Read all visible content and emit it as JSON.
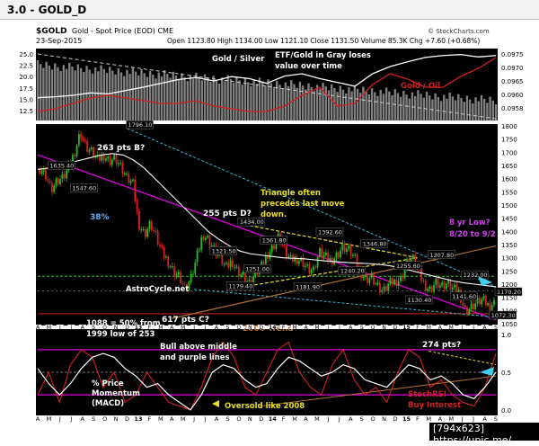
{
  "window_title": "3.0 - GOLD_D",
  "header": {
    "symbol": "$GOLD",
    "symbol_desc": "Gold - Spot Price (EOD) CME",
    "date": "23-Sep-2015",
    "ohlc": "Open 1123.80  High 1134.00  Low 1121.10  Close 1131.50  Volume 85.3K  Chg +7.60 (+0.68%)",
    "credit": "© StockCharts.com"
  },
  "colors": {
    "background": "#000000",
    "candle_up": "#22c022",
    "candle_down": "#e02020",
    "moving_average": "#ffffff",
    "magenta_line": "#e000e0",
    "cyan_line": "#30b8d0",
    "yellow_line": "#e8e020",
    "green_line": "#30c030",
    "red_line": "#d02020",
    "trend_line": "#b07030",
    "ratio_fill": "#808080"
  },
  "chart_data": [
    {
      "type": "line",
      "panel": "ratio",
      "series": [
        {
          "name": "Gold / Silver",
          "values": [
            16.0,
            16.2,
            16.5,
            17.0,
            16.8,
            17.5,
            18.2,
            19.0,
            19.8,
            20.2,
            19.5,
            20.4,
            20.0,
            19.0,
            20.5,
            21.0,
            20.0,
            19.2,
            18.4,
            21.0,
            22.5,
            23.5,
            24.4,
            24.8,
            25.0,
            24.5,
            24.8
          ]
        },
        {
          "name": "Gold / Oil",
          "values": [
            0.0956,
            0.0957,
            0.0959,
            0.0961,
            0.0962,
            0.0961,
            0.096,
            0.0959,
            0.0959,
            0.096,
            0.0958,
            0.0957,
            0.0956,
            0.0956,
            0.0958,
            0.0962,
            0.0965,
            0.0958,
            0.0959,
            0.0966,
            0.097,
            0.0968,
            0.0965,
            0.0965,
            0.0969,
            0.0972,
            0.0976
          ]
        }
      ],
      "y_left_ticks": [
        "25.0",
        "22.5",
        "20.0",
        "17.5",
        "15.0",
        "12.5"
      ],
      "y_right_ticks": [
        "0.0975",
        "0.0970",
        "0.0965",
        "0.0960",
        "0.0958"
      ],
      "annotations": [
        "Gold / Silver",
        "ETF/Gold in Gray loses",
        "value over time",
        "Gold / Oil"
      ]
    },
    {
      "type": "candlestick",
      "panel": "price",
      "x_months": [
        "A",
        "M",
        "J",
        "J",
        "A",
        "S",
        "O",
        "N",
        "D",
        "13",
        "F",
        "M",
        "A",
        "M",
        "J",
        "J",
        "A",
        "S",
        "O",
        "N",
        "D",
        "14",
        "F",
        "M",
        "A",
        "M",
        "J",
        "J",
        "A",
        "S",
        "O",
        "N",
        "D",
        "15",
        "F",
        "M",
        "A",
        "M",
        "J",
        "J",
        "A",
        "S"
      ],
      "ylim": [
        1050,
        1800
      ],
      "y_ticks": [
        1800,
        1750,
        1700,
        1650,
        1600,
        1550,
        1500,
        1450,
        1400,
        1350,
        1300,
        1250,
        1200,
        1150,
        1100,
        1050
      ],
      "close_path": [
        1640,
        1620,
        1560,
        1590,
        1600,
        1640,
        1700,
        1775,
        1720,
        1700,
        1670,
        1690,
        1670,
        1680,
        1640,
        1600,
        1580,
        1430,
        1390,
        1430,
        1380,
        1320,
        1290,
        1250,
        1230,
        1180,
        1220,
        1300,
        1390,
        1370,
        1330,
        1300,
        1260,
        1290,
        1250,
        1230,
        1200,
        1240,
        1260,
        1310,
        1340,
        1380,
        1330,
        1290,
        1300,
        1290,
        1260,
        1250,
        1320,
        1300,
        1290,
        1310,
        1340,
        1330,
        1300,
        1250,
        1220,
        1230,
        1190,
        1170,
        1200,
        1210,
        1220,
        1280,
        1300,
        1250,
        1200,
        1180,
        1210,
        1190,
        1200,
        1180,
        1170,
        1100,
        1110,
        1130,
        1140,
        1120,
        1130
      ],
      "ma_values": [
        1635,
        1640,
        1650,
        1660,
        1670,
        1680,
        1690,
        1695,
        1690,
        1670,
        1640,
        1600,
        1560,
        1520,
        1480,
        1440,
        1400,
        1370,
        1345,
        1325,
        1315,
        1310,
        1305,
        1300,
        1298,
        1296,
        1292,
        1288,
        1285,
        1282,
        1280,
        1278,
        1275,
        1270,
        1262,
        1252,
        1242,
        1232,
        1222,
        1212,
        1205,
        1200,
        1195,
        1190
      ],
      "labels": [
        {
          "text": "1796.10",
          "x": 8,
          "y": 1796
        },
        {
          "text": "1635.40",
          "x": 1,
          "y": 1642
        },
        {
          "text": "1547.60",
          "x": 3,
          "y": 1556
        },
        {
          "text": "1434.00",
          "x": 18,
          "y": 1428
        },
        {
          "text": "1361.80",
          "x": 20,
          "y": 1358
        },
        {
          "text": "1321.50",
          "x": 15.5,
          "y": 1318
        },
        {
          "text": "1251.00",
          "x": 18.5,
          "y": 1250
        },
        {
          "text": "1179.40",
          "x": 17,
          "y": 1185
        },
        {
          "text": "1181.90",
          "x": 23,
          "y": 1182
        },
        {
          "text": "1392.60",
          "x": 25,
          "y": 1390
        },
        {
          "text": "1240.20",
          "x": 27,
          "y": 1242
        },
        {
          "text": "1346.80",
          "x": 29,
          "y": 1345
        },
        {
          "text": "1255.60",
          "x": 32,
          "y": 1262
        },
        {
          "text": "1130.40",
          "x": 33,
          "y": 1132
        },
        {
          "text": "1307.80",
          "x": 35,
          "y": 1303
        },
        {
          "text": "1232.00",
          "x": 38,
          "y": 1227
        },
        {
          "text": "1141.60",
          "x": 37,
          "y": 1146
        },
        {
          "text": "1072.30",
          "x": 40.5,
          "y": 1074
        },
        {
          "text": "1170.20",
          "x": 41,
          "y": 1163
        }
      ],
      "annotations": {
        "pts_b": "263 pts B?",
        "triangle": "Triangle often\nprecedes last move\ndown.",
        "pct38": "38%",
        "pts_d": "255 pts D?",
        "low_q": "8 yr Low?\n8/20 to 9/2",
        "astro": "AstroCycle.net",
        "pts_c": "617 pts C?",
        "trend2000": "2000 Trend",
        "note1088": "1088 = 50% from\n1999  low of 253",
        "pts274": "274 pts?"
      }
    },
    {
      "type": "line",
      "panel": "momentum",
      "series": [
        {
          "name": "% Price Momentum (MACD)",
          "values": [
            0.55,
            0.35,
            0.2,
            0.35,
            0.55,
            0.7,
            0.75,
            0.7,
            0.55,
            0.45,
            0.3,
            0.35,
            0.2,
            0.1,
            0.0,
            0.2,
            0.5,
            0.6,
            0.55,
            0.4,
            0.3,
            0.35,
            0.55,
            0.7,
            0.65,
            0.55,
            0.45,
            0.5,
            0.6,
            0.55,
            0.4,
            0.35,
            0.3,
            0.45,
            0.6,
            0.55,
            0.4,
            0.45,
            0.35,
            0.2,
            0.15,
            0.3,
            0.5
          ]
        },
        {
          "name": "StochRSI",
          "values": [
            0.2,
            0.5,
            0.1,
            0.6,
            0.8,
            0.7,
            0.3,
            0.5,
            0.1,
            0.2,
            0.5,
            0.3,
            0.1,
            0.05,
            0.0,
            0.3,
            0.7,
            0.9,
            0.7,
            0.3,
            0.2,
            0.5,
            0.8,
            0.9,
            0.5,
            0.3,
            0.2,
            0.6,
            0.8,
            0.4,
            0.2,
            0.3,
            0.1,
            0.5,
            0.8,
            0.7,
            0.3,
            0.4,
            0.2,
            0.1,
            0.05,
            0.3,
            0.75
          ]
        }
      ],
      "y_ticks": [
        "1.0",
        "0.5",
        "0.0"
      ],
      "annotations": {
        "bull": "Bull above middle\nand purple lines",
        "momentum": "% Price\nMomentum\n(MACD)",
        "oversold": "Oversold like 2008",
        "stochrsi": "StochRSI\nBuy Interest"
      }
    }
  ],
  "x_axis_bottom": [
    "A",
    "M",
    "J",
    "J",
    "A",
    "S",
    "O",
    "N",
    "D",
    "13",
    "F",
    "M",
    "A",
    "M",
    "J",
    "J",
    "A",
    "S",
    "O",
    "N",
    "D",
    "14",
    "F",
    "M",
    "A",
    "M",
    "J",
    "J",
    "A",
    "S",
    "O",
    "N",
    "D",
    "15",
    "F",
    "M",
    "A",
    "M",
    "J",
    "J",
    "A",
    "S"
  ],
  "watermark": "[794x623] https://upic.me/"
}
